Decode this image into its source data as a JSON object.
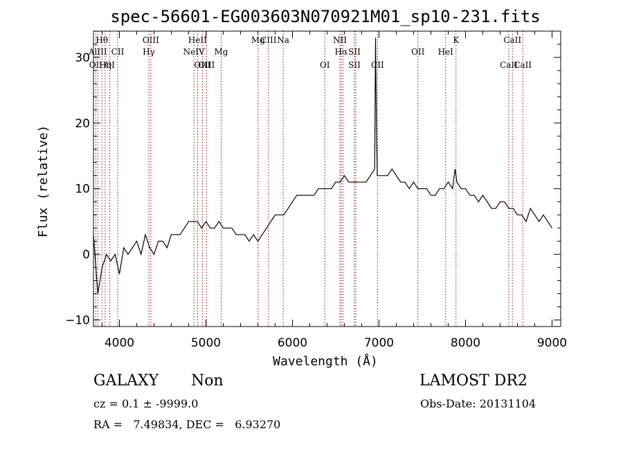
{
  "chart_data": {
    "type": "line",
    "title": "spec-56601-EG003603N070921M01_sp10-231.fits",
    "xlabel": "Wavelength (Å)",
    "ylabel": "Flux (relative)",
    "xlim": [
      3700,
      9100
    ],
    "ylim": [
      -11,
      34
    ],
    "x_ticks": [
      4000,
      5000,
      6000,
      7000,
      8000,
      9000
    ],
    "y_ticks": [
      -10,
      0,
      10,
      20,
      30
    ],
    "grid": false,
    "line_color": "#000000",
    "marker_color": "#990000",
    "series": [
      {
        "x": [
          3700,
          3750,
          3800,
          3850,
          3900,
          3950,
          4000,
          4050,
          4100,
          4150,
          4200,
          4250,
          4300,
          4350,
          4400,
          4450,
          4500,
          4550,
          4600,
          4650,
          4700,
          4750,
          4800,
          4850,
          4900,
          4950,
          5000,
          5050,
          5100,
          5150,
          5200,
          5250,
          5300,
          5350,
          5400,
          5450,
          5500,
          5550,
          5600,
          5650,
          5700,
          5750,
          5800,
          5850,
          5900,
          5950,
          6000,
          6050,
          6100,
          6150,
          6200,
          6250,
          6300,
          6350,
          6400,
          6450,
          6500,
          6550,
          6600,
          6650,
          6700,
          6750,
          6800,
          6850,
          6900,
          6950,
          6960,
          6970,
          6980,
          7000,
          7050,
          7100,
          7150,
          7200,
          7250,
          7300,
          7350,
          7400,
          7450,
          7500,
          7550,
          7600,
          7650,
          7700,
          7750,
          7800,
          7850,
          7880,
          7900,
          7950,
          8000,
          8050,
          8100,
          8150,
          8200,
          8250,
          8300,
          8350,
          8400,
          8450,
          8500,
          8550,
          8600,
          8650,
          8700,
          8750,
          8800,
          8850,
          8900,
          8950,
          9000
        ],
        "y": [
          3,
          -6,
          -2,
          0,
          -1,
          0,
          -3,
          1,
          0,
          1,
          2,
          0,
          3,
          1,
          0,
          2,
          2,
          1,
          3,
          3,
          3,
          4,
          5,
          5,
          5,
          4,
          5,
          4,
          4,
          5,
          4,
          4,
          4,
          3,
          3,
          3,
          2,
          3,
          2,
          3,
          4,
          5,
          6,
          6,
          6,
          7,
          8,
          9,
          9,
          9,
          9,
          9,
          10,
          10,
          10,
          10,
          11,
          11,
          12,
          11,
          11,
          11,
          11,
          11,
          12,
          13,
          33,
          20,
          12,
          12,
          12,
          12,
          13,
          12,
          11,
          11,
          10,
          11,
          10,
          10,
          10,
          9,
          9,
          10,
          10,
          11,
          10,
          13,
          11,
          10,
          10,
          9,
          9,
          8,
          9,
          8,
          7,
          7,
          8,
          8,
          7,
          7,
          6,
          6,
          5,
          7,
          6,
          5,
          6,
          5,
          4
        ]
      }
    ],
    "lines": [
      {
        "x": 3727,
        "top": "",
        "mid": "",
        "low": "OII"
      },
      {
        "x": 3750,
        "top": "",
        "mid": "AlIII",
        "low": ""
      },
      {
        "x": 3798,
        "top": "Hθ",
        "mid": "",
        "low": ""
      },
      {
        "x": 3835,
        "top": "",
        "mid": "",
        "low": "Hη"
      },
      {
        "x": 3889,
        "top": "",
        "mid": "",
        "low": "OI"
      },
      {
        "x": 3980,
        "top": "",
        "mid": "CII",
        "low": ""
      },
      {
        "x": 4340,
        "top": "",
        "mid": "Hγ",
        "low": ""
      },
      {
        "x": 4363,
        "top": "OIII",
        "low": "",
        "mid": ""
      },
      {
        "x": 4861,
        "top": "",
        "mid": "NeIV",
        "low": ""
      },
      {
        "x": 4903,
        "top": "HeII",
        "mid": "",
        "low": ""
      },
      {
        "x": 4959,
        "top": "",
        "mid": "",
        "low": "OIII"
      },
      {
        "x": 5007,
        "top": "",
        "mid": "",
        "low": "OIII"
      },
      {
        "x": 5176,
        "top": "",
        "mid": "Mg",
        "low": ""
      },
      {
        "x": 5603,
        "top": "Mg",
        "mid": "",
        "low": ""
      },
      {
        "x": 5722,
        "top": "CIII",
        "mid": "",
        "low": ""
      },
      {
        "x": 5893,
        "top": "Na",
        "mid": "",
        "low": ""
      },
      {
        "x": 6374,
        "top": "",
        "mid": "",
        "low": "OI"
      },
      {
        "x": 6548,
        "top": "NII",
        "mid": "",
        "low": ""
      },
      {
        "x": 6563,
        "top": "",
        "mid": "Hα",
        "low": ""
      },
      {
        "x": 6583,
        "top": "",
        "mid": "",
        "low": ""
      },
      {
        "x": 6716,
        "top": "",
        "mid": "SII",
        "low": "SII"
      },
      {
        "x": 6731,
        "top": "",
        "mid": "",
        "low": ""
      },
      {
        "x": 6983,
        "top": "",
        "mid": "",
        "low": "CII"
      },
      {
        "x": 7450,
        "top": "",
        "mid": "OII",
        "low": ""
      },
      {
        "x": 7770,
        "top": "",
        "mid": "HeI",
        "low": ""
      },
      {
        "x": 7890,
        "top": "K",
        "mid": "",
        "low": ""
      },
      {
        "x": 8500,
        "top": "",
        "mid": "",
        "low": "CaII"
      },
      {
        "x": 8542,
        "top": "CaII",
        "mid": "",
        "low": ""
      },
      {
        "x": 8662,
        "top": "",
        "mid": "",
        "low": "CaII"
      }
    ]
  },
  "info": {
    "class": "GALAXY",
    "subclass": "Non",
    "survey": "LAMOST DR2",
    "cz": "cz = 0.1 ± -9999.0",
    "obs_date": "Obs-Date: 20131104",
    "radec": "RA =   7.49834, DEC =   6.93270"
  }
}
